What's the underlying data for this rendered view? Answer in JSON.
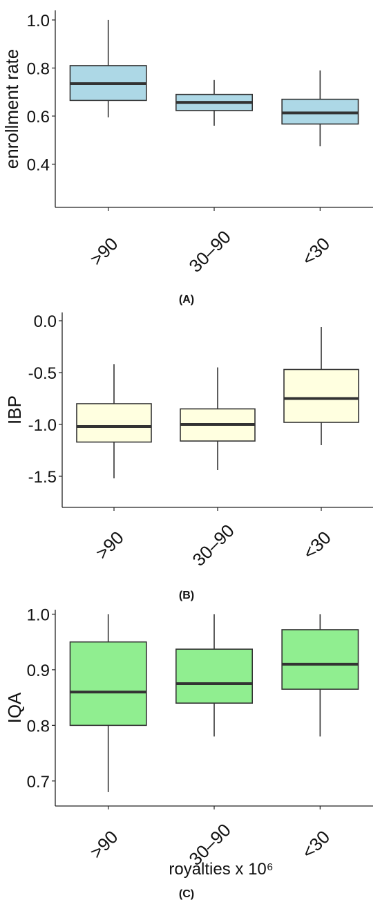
{
  "charts": [
    {
      "type": "box",
      "panel_label": "(A)",
      "ylabel": "enrollment rate",
      "xlabel": "",
      "yticks": [
        "1.0",
        "0.8",
        "0.6",
        "0.4"
      ],
      "fill_color": "#ADD8E6",
      "chart_data": {
        "type": "box",
        "categories": [
          ">90",
          "30–90",
          "<30"
        ],
        "ylim": [
          0.22,
          1.04
        ],
        "tick_values": [
          1.0,
          0.8,
          0.6,
          0.4
        ],
        "boxes": [
          {
            "min": 0.595,
            "q1": 0.665,
            "median": 0.735,
            "q3": 0.81,
            "max": 1.0
          },
          {
            "min": 0.56,
            "q1": 0.623,
            "median": 0.657,
            "q3": 0.69,
            "max": 0.75
          },
          {
            "min": 0.475,
            "q1": 0.567,
            "median": 0.613,
            "q3": 0.67,
            "max": 0.79
          }
        ]
      }
    },
    {
      "type": "box",
      "panel_label": "(B)",
      "ylabel": "IBP",
      "xlabel": "",
      "yticks": [
        "0.0",
        "-0.5",
        "-1.0",
        "-1.5"
      ],
      "fill_color": "#FFFFE0",
      "chart_data": {
        "type": "box",
        "categories": [
          ">90",
          "30–90",
          "<30"
        ],
        "ylim": [
          -1.8,
          0.08
        ],
        "tick_values": [
          0.0,
          -0.5,
          -1.0,
          -1.5
        ],
        "boxes": [
          {
            "min": -1.52,
            "q1": -1.17,
            "median": -1.02,
            "q3": -0.8,
            "max": -0.42
          },
          {
            "min": -1.44,
            "q1": -1.16,
            "median": -1.0,
            "q3": -0.85,
            "max": -0.45
          },
          {
            "min": -1.2,
            "q1": -0.98,
            "median": -0.75,
            "q3": -0.47,
            "max": -0.06
          }
        ]
      }
    },
    {
      "type": "box",
      "panel_label": "(C)",
      "ylabel": "IQA",
      "xlabel": "royalties x 10⁶",
      "yticks": [
        "1.0",
        "0.9",
        "0.8",
        "0.7"
      ],
      "fill_color": "#90EE90",
      "chart_data": {
        "type": "box",
        "categories": [
          ">90",
          "30–90",
          "<30"
        ],
        "ylim": [
          0.655,
          1.008
        ],
        "tick_values": [
          1.0,
          0.9,
          0.8,
          0.7
        ],
        "boxes": [
          {
            "min": 0.68,
            "q1": 0.8,
            "median": 0.86,
            "q3": 0.95,
            "max": 1.0
          },
          {
            "min": 0.78,
            "q1": 0.84,
            "median": 0.875,
            "q3": 0.937,
            "max": 1.0
          },
          {
            "min": 0.78,
            "q1": 0.865,
            "median": 0.91,
            "q3": 0.972,
            "max": 1.0
          }
        ]
      }
    }
  ]
}
